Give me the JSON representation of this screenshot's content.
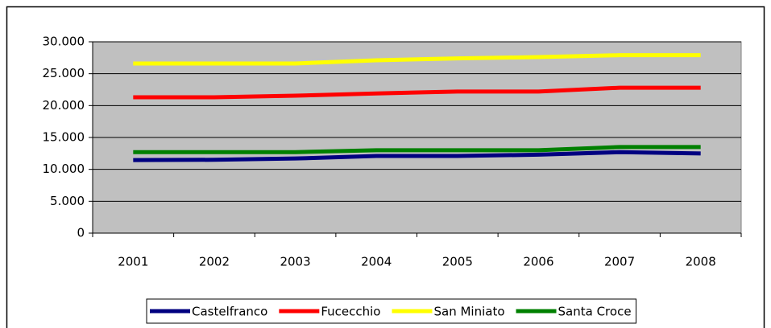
{
  "chart_data": {
    "type": "line",
    "categories": [
      "2001",
      "2002",
      "2003",
      "2004",
      "2005",
      "2006",
      "2007",
      "2008"
    ],
    "series": [
      {
        "name": "Castelfranco",
        "color": "#000080",
        "values": [
          11450,
          11500,
          11700,
          12100,
          12100,
          12300,
          12700,
          12500
        ]
      },
      {
        "name": "Fucecchio",
        "color": "#ff0000",
        "values": [
          21300,
          21300,
          21550,
          21900,
          22200,
          22200,
          22800,
          22800
        ]
      },
      {
        "name": "San Miniato",
        "color": "#ffff00",
        "values": [
          26600,
          26600,
          26600,
          27100,
          27400,
          27600,
          27900,
          27900
        ]
      },
      {
        "name": "Santa Croce",
        "color": "#008000",
        "values": [
          12700,
          12700,
          12700,
          13000,
          13000,
          13000,
          13500,
          13500
        ]
      }
    ],
    "ylim": [
      0,
      30000
    ],
    "yticks": [
      0,
      {
        "value": 5000,
        "label": "5.000"
      },
      {
        "value": 10000,
        "label": "10.000"
      },
      {
        "value": 15000,
        "label": "15.000"
      },
      {
        "value": 20000,
        "label": "20.000"
      },
      {
        "value": 25000,
        "label": "25.000"
      },
      {
        "value": 30000,
        "label": "30.000"
      }
    ],
    "grid": true,
    "legend": "bottom",
    "plot_background": "#c0c0c0"
  }
}
